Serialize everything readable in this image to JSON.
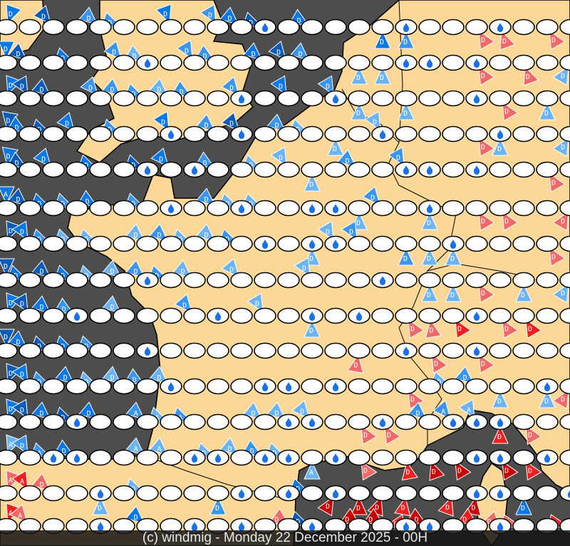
{
  "caption": "(c) windmig - Monday 22 December 2025 - 00H",
  "colors": {
    "sea": "#4d4d4d",
    "land": "#fcd898",
    "border": "#000000",
    "levels": {
      "1": "#6ab4f4",
      "2": "#3a96ec",
      "3": "#0a78e6",
      "4": "#0a5cb8",
      "5": "#f06868",
      "6": "#f02020",
      "7": "#c80000"
    },
    "drop": "#1a70e8"
  },
  "legend_codes": {
    "station": "weather station (white ellipse)",
    "drop": "rain",
    "D": "wind marker D",
    "A": "wind marker A"
  },
  "rows": [
    {
      "winds": "D3@200 - D4@230 - D2@220 D2@200 - D3@250 - D2@240 D3@220 D4@200 - D3@210 - - D3@90 D2@90 - - D5@60 D5@70 - D5@60 -",
      "drops": "...........d.....d...d..."
    },
    {
      "winds": "D3@210 D4@220 - D3@200 - D2@230 D1@210 - D2@240 D2@210 - D3@220 D4@230 D2@220 - D1@90 D1@90 - - - D5@60 - D5@70 - D1@90",
      "drops": "......d..........dd.d...."
    },
    {
      "winds": "D3@200 D4@210 D4@220 - D2@230 D2@220 D2@200 D1@220 D2@210 - D2@230 - D3@240 - D2@240 D1@90 - D1@90 - - - D5@60 - D1@90 -",
      "drops": "..........d...d.....d...."
    },
    {
      "winds": "D4@220 D3@210 D4@200 D3@230 - D2@200 - D3@240 - D2@220 D4@230 - D2@220 D1@200 D1@90 - D1@240 - - - D5@60 D1@90 - - D1@90",
      "drops": ".......d..d.....d....d..."
    },
    {
      "winds": "D3@220 D4@210 D3@230 - D3@200 - D4@200 D3@230 - D2@210 - D1@200 D1@240 D1@90 - D2@220 - D2@240 - - - - - D5@60 -",
      "drops": "......d.d........dd.d...."
    },
    {
      "winds": "A3@210 D4@220 D3@200 D2@200 D3@210 - D2@200 - - D2@220 D1@200 D1@200 - - - D1@90 D2@230 - D1@90 - D5@60 D5@60 - - D5@60",
      "drops": ".......d..d..dd...d......"
    },
    {
      "winds": "D4@200 D3@210 D2@200 D1@200 D1@200 - D1@220 D2@220 D1@200 D1@220 D2@200 - - D1@90 D1@240 D2@240 - D2@90 D1@90 D1@90 - - - D5@60 -",
      "drops": "...........d.dd....d....."
    },
    {
      "winds": "D4@210 D3@200 D4@220 D3@200 D1@200 D1@220 D2@220 D2@200 D1@220 - D1@230 - - D1@240 - - - - D1@90 D1@90 D5@60 - D1@90 - D1@90",
      "drops": "......d.........d........"
    },
    {
      "winds": "D3@200 D4@210 D3@220 D2@210 - D1@220 - - D2@230 - - D1@240 - D1@90 - - - D5@60 D5@80 D6@60 - D5@60 D6@60 - -",
      "drops": "...d.....d...d.d....d...."
    },
    {
      "winds": "D4@210 D3@220 D4@200 D3@200 D2@200 - - - - - - - - - - D5@100 - - D5@60 - D5@60 - - - -",
      "drops": "......d..........d..d....."
    },
    {
      "winds": "D4@200 D3@210 D2@200 D3@220 D1@200 D1@220 D2@210 D1@220 - - - - - - - - - D5@60 - D1@200 D2@220 D1@90 - D1@90 D5@60",
      "drops": ".......d...dd.d........d."
    },
    {
      "winds": "D3@200 D4@210 D3@220 D4@200 D3@220 - A2@220 A1@200 A2@200 - - D1@220 D1@220 D1@230 - D5@60 D5@60 - D2@220 A2@230 A1@240 D6@90 D5@60 - -",
      "drops": "...d........dd..d..ddd...."
    },
    {
      "winds": "A1@200 D2@210 A2@200 D3@210 - - A1@220 A1@220 - D1@200 D1@220 D2@210 D1@200 A1@90 - D5@60 - D6@80 D7@70 D7@60 - D7@60 D6@60 - -",
      "drops": "..dd....dd.dd.d.....dd.d..."
    },
    {
      "winds": "A5@200 A6@210 D5@220 - D1@90 - D1@200 - - D2@90 - - - D3@200 D7@120 D7@90 D7@110 D6@100 - D6@110 D7@100 - D3@90 - -",
      "drops": "....d.....d.d.d.....dd..dd."
    },
    {
      "winds": "A6@200 A5@200 - - - - D3@220 - - - - D5@60 - D4@200 D7@60 D7@90 D6@110 - D7@90 D6@60 D5@100 - D5@100 - D6@100",
      "drops": "....d...d.d..d...dd..d....d"
    }
  ]
}
